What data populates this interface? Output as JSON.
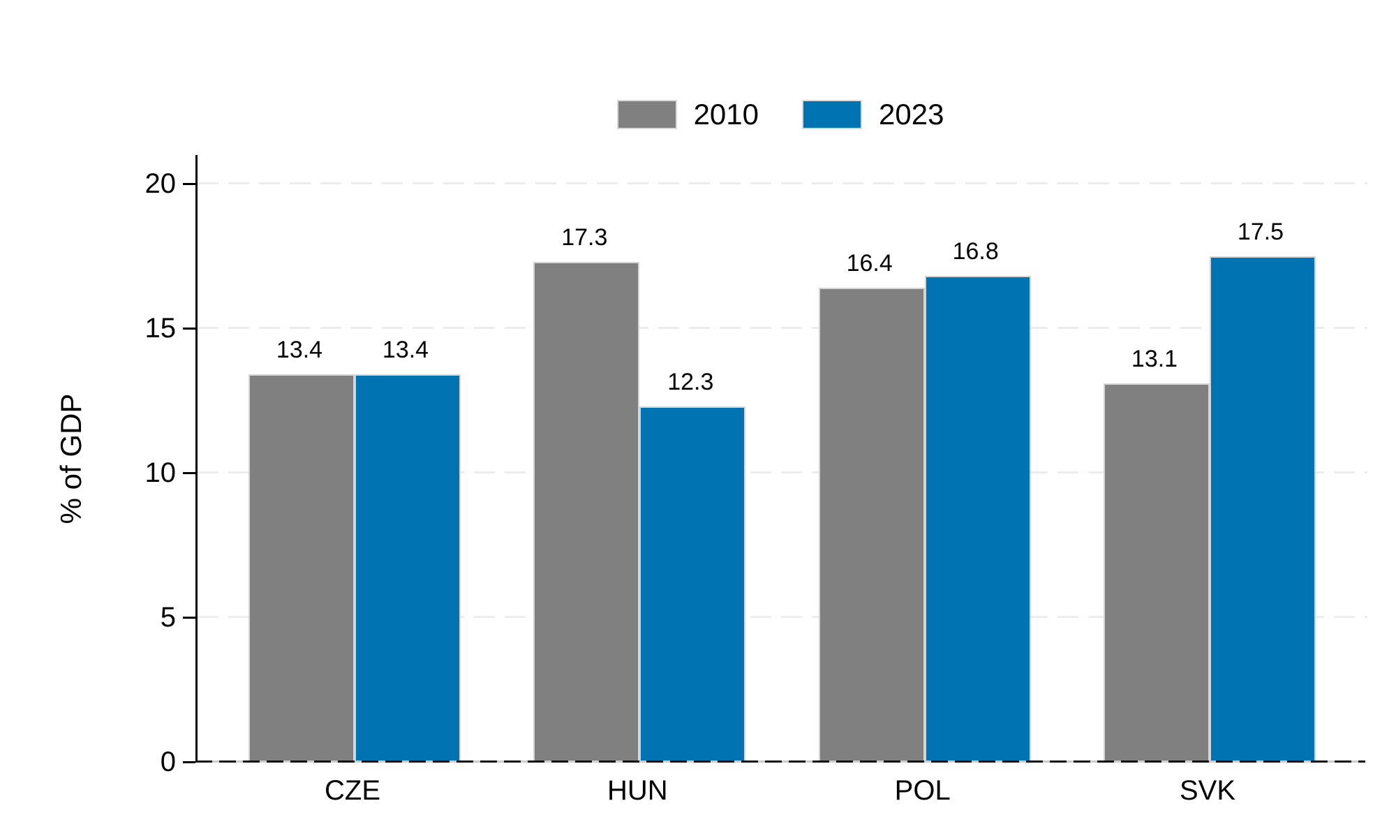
{
  "chart_data": {
    "type": "bar",
    "title": "",
    "categories": [
      "CZE",
      "HUN",
      "POL",
      "SVK"
    ],
    "series": [
      {
        "name": "2010",
        "color": "#808080",
        "values": [
          13.4,
          17.3,
          16.4,
          13.1
        ]
      },
      {
        "name": "2023",
        "color": "#0073b2",
        "values": [
          13.4,
          12.3,
          16.8,
          17.5
        ]
      }
    ],
    "value_labels": [
      "13.4",
      "13.4",
      "17.3",
      "12.3",
      "16.4",
      "16.8",
      "13.1",
      "17.5"
    ],
    "xlabel": "",
    "ylabel": "% of GDP",
    "yticks": [
      0,
      5,
      10,
      15,
      20
    ],
    "ylim": [
      0,
      21
    ],
    "grid": "horizontal-dashed",
    "gridline_color": "#ececec",
    "bar_border_color": "#d5d5d5",
    "legend_position": "top-center",
    "show_value_labels": true
  }
}
